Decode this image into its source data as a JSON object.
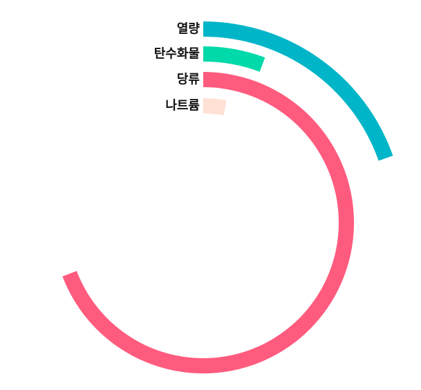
{
  "chart_data": {
    "type": "radial-bar",
    "title": "",
    "start_angle_deg": 0,
    "direction": "clockwise",
    "max_value": 100,
    "series": [
      {
        "label": "열량",
        "value": 19.6,
        "color": "#00b5c8"
      },
      {
        "label": "탄수화물",
        "value": 5.7,
        "color": "#00d9a9"
      },
      {
        "label": "당류",
        "value": 69.2,
        "color": "#ff5b7e"
      },
      {
        "label": "나트륨",
        "value": 3.0,
        "color": "#ffe0d4"
      }
    ]
  }
}
